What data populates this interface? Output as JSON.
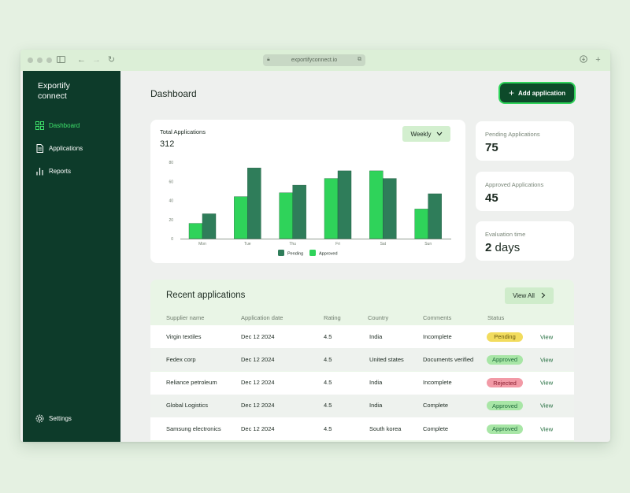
{
  "browser": {
    "url": "exportifyconnect.io"
  },
  "sidebar": {
    "brand": "Exportify connect",
    "items": [
      {
        "label": "Dashboard",
        "icon": "grid-icon",
        "active": true
      },
      {
        "label": "Applications",
        "icon": "document-icon",
        "active": false
      },
      {
        "label": "Reports",
        "icon": "bar-chart-icon",
        "active": false
      }
    ],
    "settings_label": "Settings"
  },
  "header": {
    "title": "Dashboard",
    "add_button_label": "Add application"
  },
  "chart": {
    "title": "Total Applications",
    "total": "312",
    "period_label": "Weekly"
  },
  "chart_data": {
    "type": "bar",
    "categories": [
      "Mon",
      "Tue",
      "Thu",
      "Fri",
      "Sat",
      "Sun"
    ],
    "series": [
      {
        "name": "Pending",
        "color": "#2f7d5a",
        "values": [
          26,
          74,
          56,
          71,
          63,
          47
        ]
      },
      {
        "name": "Approved",
        "color": "#2fd35a",
        "values": [
          16,
          44,
          48,
          63,
          71,
          31
        ]
      }
    ],
    "yticks": [
      0,
      20,
      40,
      60,
      80
    ],
    "ylim": [
      0,
      80
    ],
    "legend": [
      "Pending",
      "Approved"
    ],
    "legend_position": "bottom"
  },
  "stats": [
    {
      "label": "Pending Applications",
      "value": "75",
      "unit": ""
    },
    {
      "label": "Approved Applications",
      "value": "45",
      "unit": ""
    },
    {
      "label": "Evaluation time",
      "value": "2",
      "unit": "days"
    }
  ],
  "recent": {
    "title": "Recent applications",
    "view_all_label": "View All",
    "columns": [
      "Supplier name",
      "Application date",
      "Rating",
      "Country",
      "Comments",
      "Status"
    ],
    "rows": [
      {
        "supplier": "Virgin textiles",
        "date": "Dec 12 2024",
        "rating": "4.5",
        "country": "India",
        "comments": "Incomplete",
        "status": "Pending",
        "action": "View"
      },
      {
        "supplier": "Fedex corp",
        "date": "Dec 12 2024",
        "rating": "4.5",
        "country": "United states",
        "comments": "Documents verified",
        "status": "Approved",
        "action": "View"
      },
      {
        "supplier": "Reliance petroleum",
        "date": "Dec 12 2024",
        "rating": "4.5",
        "country": "India",
        "comments": "Incomplete",
        "status": "Rejected",
        "action": "View"
      },
      {
        "supplier": "Global Logistics",
        "date": "Dec 12 2024",
        "rating": "4.5",
        "country": "India",
        "comments": "Complete",
        "status": "Approved",
        "action": "View"
      },
      {
        "supplier": "Samsung electronics",
        "date": "Dec 12 2024",
        "rating": "4.5",
        "country": "South korea",
        "comments": "Complete",
        "status": "Approved",
        "action": "View"
      }
    ],
    "status_colors": {
      "Pending": {
        "bg": "#f2dc5e",
        "fg": "#6b5a10"
      },
      "Approved": {
        "bg": "#a8e6a6",
        "fg": "#1f6b3b"
      },
      "Rejected": {
        "bg": "#f29aa6",
        "fg": "#8a1f30"
      }
    }
  }
}
